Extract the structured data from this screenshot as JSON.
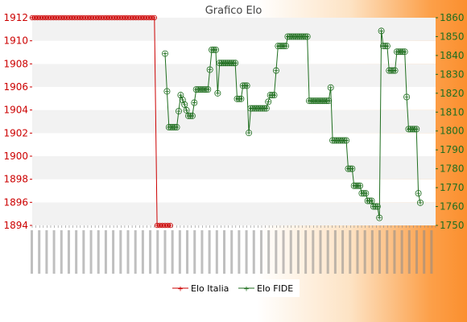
{
  "chart_data": {
    "type": "line",
    "title": "Grafico Elo",
    "y_left": {
      "min": 1894,
      "max": 1912,
      "ticks": [
        1894,
        1896,
        1898,
        1900,
        1902,
        1904,
        1906,
        1908,
        1910,
        1912
      ]
    },
    "y_right": {
      "min": 1750,
      "max": 1860,
      "ticks": [
        1750,
        1760,
        1770,
        1780,
        1790,
        1800,
        1810,
        1820,
        1830,
        1840,
        1850,
        1860
      ]
    },
    "x_count": 110,
    "grid": "horizontal bands",
    "legend_position": "bottom-center",
    "series": [
      {
        "name": "Elo Italia",
        "color": "#cc0000",
        "axis": "left",
        "values": [
          1912,
          1912,
          1912,
          1912,
          1912,
          1912,
          1912,
          1912,
          1912,
          1912,
          1912,
          1912,
          1912,
          1912,
          1912,
          1912,
          1912,
          1912,
          1912,
          1912,
          1912,
          1912,
          1912,
          1912,
          1912,
          1912,
          1912,
          1912,
          1912,
          1912,
          1912,
          1912,
          1912,
          1912,
          1912,
          1912,
          1912,
          1912,
          1912,
          1912,
          1912,
          1912,
          1912,
          1912,
          1912,
          1912,
          1912,
          1894,
          1894,
          1894,
          1894,
          1894,
          1894
        ]
      },
      {
        "name": "Elo FIDE",
        "color": "#1f6e1f",
        "axis": "right",
        "segments": [
          [
            52,
            1841
          ],
          [
            53,
            1821
          ],
          [
            54,
            1802
          ],
          [
            58,
            1802
          ],
          [
            60,
            1819
          ],
          [
            62,
            1814
          ],
          [
            64,
            1808
          ],
          [
            66,
            1808
          ],
          [
            68,
            1822
          ],
          [
            74,
            1822
          ],
          [
            76,
            1843
          ],
          [
            78,
            1843
          ],
          [
            79,
            1820
          ],
          [
            80,
            1836
          ],
          [
            88,
            1836
          ],
          [
            89,
            1817
          ],
          [
            91,
            1817
          ],
          [
            92,
            1824
          ],
          [
            94,
            1824
          ],
          [
            95,
            1799
          ],
          [
            96,
            1812
          ],
          [
            104,
            1812
          ],
          [
            106,
            1819
          ],
          [
            108,
            1819
          ],
          [
            110,
            1845
          ],
          [
            114,
            1845
          ],
          [
            115,
            1850
          ],
          [
            125,
            1850
          ],
          [
            126,
            1816
          ],
          [
            136,
            1816
          ],
          [
            137,
            1823
          ],
          [
            138,
            1795
          ],
          [
            145,
            1795
          ],
          [
            146,
            1780
          ],
          [
            148,
            1780
          ],
          [
            149,
            1771
          ],
          [
            152,
            1771
          ],
          [
            153,
            1767
          ],
          [
            155,
            1767
          ],
          [
            156,
            1763
          ],
          [
            158,
            1763
          ],
          [
            159,
            1760
          ],
          [
            161,
            1760
          ],
          [
            162,
            1754
          ],
          [
            163,
            1853
          ],
          [
            164,
            1845
          ],
          [
            166,
            1845
          ],
          [
            167,
            1832
          ],
          [
            170,
            1832
          ],
          [
            171,
            1842
          ],
          [
            175,
            1842
          ],
          [
            176,
            1818
          ],
          [
            177,
            1801
          ],
          [
            181,
            1801
          ],
          [
            182,
            1767
          ],
          [
            183,
            1762
          ]
        ]
      }
    ]
  },
  "legend": {
    "item1": "Elo Italia",
    "item2": "Elo FIDE"
  }
}
